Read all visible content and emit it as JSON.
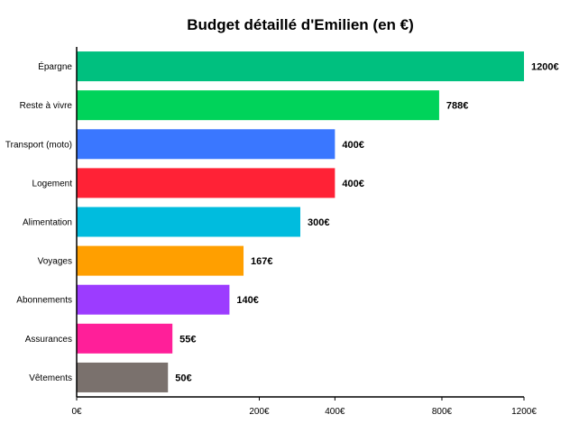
{
  "chart_data": {
    "type": "bar",
    "orientation": "horizontal",
    "title": "Budget détaillé d'Emilien (en €)",
    "xlabel": "",
    "ylabel": "",
    "xlim": [
      0,
      1200
    ],
    "x_ticks": [
      0,
      200,
      400,
      800,
      1200
    ],
    "x_tick_labels": [
      "0€",
      "200€",
      "400€",
      "800€",
      "1200€"
    ],
    "x_scale": "sqrt",
    "grid": false,
    "categories": [
      "Épargne",
      "Reste à vivre",
      "Transport (moto)",
      "Logement",
      "Alimentation",
      "Voyages",
      "Abonnements",
      "Assurances",
      "Vêtements"
    ],
    "values": [
      1200,
      788,
      400,
      400,
      300,
      167,
      140,
      55,
      50
    ],
    "value_labels": [
      "1200€",
      "788€",
      "400€",
      "400€",
      "300€",
      "167€",
      "140€",
      "55€",
      "50€"
    ],
    "colors": [
      "#00c07f",
      "#00d35a",
      "#3a77ff",
      "#ff2236",
      "#00bcde",
      "#ff9f00",
      "#9c3cff",
      "#ff1f99",
      "#7a716d"
    ]
  }
}
